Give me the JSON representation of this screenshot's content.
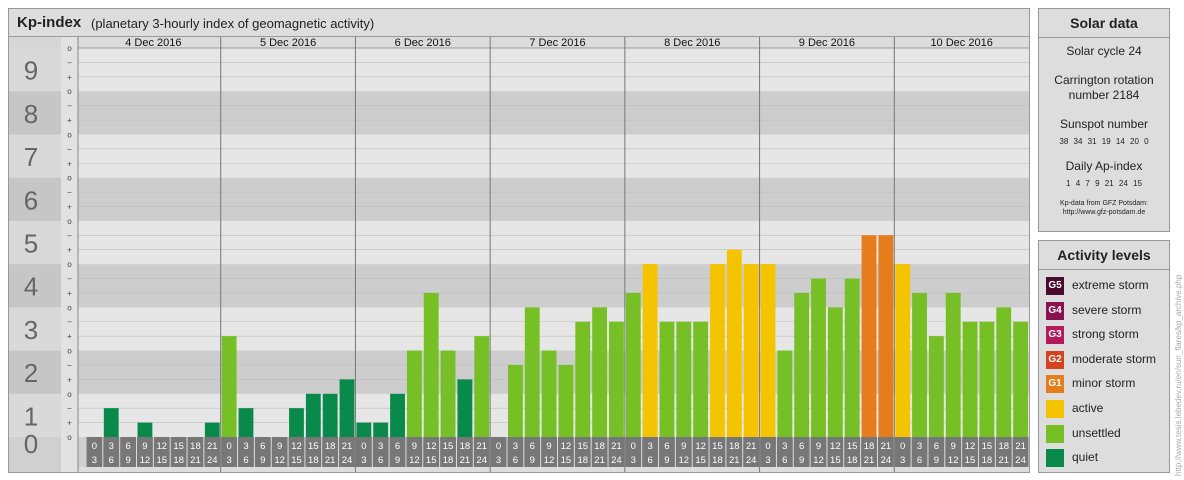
{
  "header": {
    "title": "Kp-index",
    "subtitle": "(planetary 3-hourly index of geomagnetic activity)"
  },
  "chart_data": {
    "type": "bar",
    "title": "Kp-index",
    "subtitle": "(planetary 3-hourly index of geomagnetic activity)",
    "ylim": [
      0,
      9
    ],
    "y_ticks": [
      "0",
      "1",
      "2",
      "3",
      "4",
      "5",
      "6",
      "7",
      "8",
      "9"
    ],
    "minor_ticks": [
      "o",
      "+",
      "−"
    ],
    "days": [
      "4 Dec 2016",
      "5 Dec 2016",
      "6 Dec 2016",
      "7 Dec 2016",
      "8 Dec 2016",
      "9 Dec 2016",
      "10 Dec 2016"
    ],
    "interval_starts": [
      "0",
      "3",
      "6",
      "9",
      "12",
      "15",
      "18",
      "21"
    ],
    "interval_ends": [
      "3",
      "6",
      "9",
      "12",
      "15",
      "18",
      "21",
      "24"
    ],
    "values": [
      [
        0.0,
        0.667,
        0.0,
        0.333,
        0.0,
        0.0,
        0.0,
        0.333
      ],
      [
        2.333,
        0.667,
        0.0,
        0.0,
        0.667,
        1.0,
        1.0,
        1.333
      ],
      [
        0.333,
        0.333,
        1.0,
        2.0,
        3.333,
        2.0,
        1.333,
        2.333
      ],
      [
        0.0,
        1.667,
        3.0,
        2.0,
        1.667,
        2.667,
        3.0,
        2.667
      ],
      [
        3.333,
        4.0,
        2.667,
        2.667,
        2.667,
        4.0,
        4.333,
        4.0
      ],
      [
        4.0,
        2.0,
        3.333,
        3.667,
        3.0,
        3.667,
        4.667,
        4.667
      ],
      [
        4.0,
        3.333,
        2.333,
        3.333,
        2.667,
        2.667,
        3.0,
        2.667
      ]
    ],
    "colors": {
      "quiet": "#0a8a4a",
      "unsettled": "#76c026",
      "active": "#f5c400",
      "minor_storm": "#e67c1b",
      "moderate_storm": "#d4431e",
      "strong_storm": "#b21a5b",
      "severe_storm": "#8b1250",
      "extreme_storm": "#4a0a2e"
    }
  },
  "solar": {
    "title": "Solar data",
    "cycle": "Solar cycle 24",
    "carrington_line1": "Carrington rotation",
    "carrington_line2": "number 2184",
    "sunspot_title": "Sunspot number",
    "sunspot_values": "38 34 31 19 14 20 0",
    "ap_title": "Daily Ap-index",
    "ap_values": "1 4 7 9 21 24 15",
    "source_line1": "Kp-data from GFZ Potsdam:",
    "source_line2": "http://www.gfz-potsdam.de"
  },
  "activity": {
    "title": "Activity levels",
    "levels": [
      {
        "code": "G5",
        "label": "extreme storm",
        "color": "#4a0a2e"
      },
      {
        "code": "G4",
        "label": "severe storm",
        "color": "#8b1250"
      },
      {
        "code": "G3",
        "label": "strong storm",
        "color": "#b21a5b"
      },
      {
        "code": "G2",
        "label": "moderate storm",
        "color": "#d4431e"
      },
      {
        "code": "G1",
        "label": "minor storm",
        "color": "#e67c1b"
      },
      {
        "code": "",
        "label": "active",
        "color": "#f5c400"
      },
      {
        "code": "",
        "label": "unsettled",
        "color": "#76c026"
      },
      {
        "code": "",
        "label": "quiet",
        "color": "#0a8a4a"
      }
    ]
  },
  "watermark": "http://www.tesis.lebedev.ru/en/sun_flares/kp_archive.php"
}
